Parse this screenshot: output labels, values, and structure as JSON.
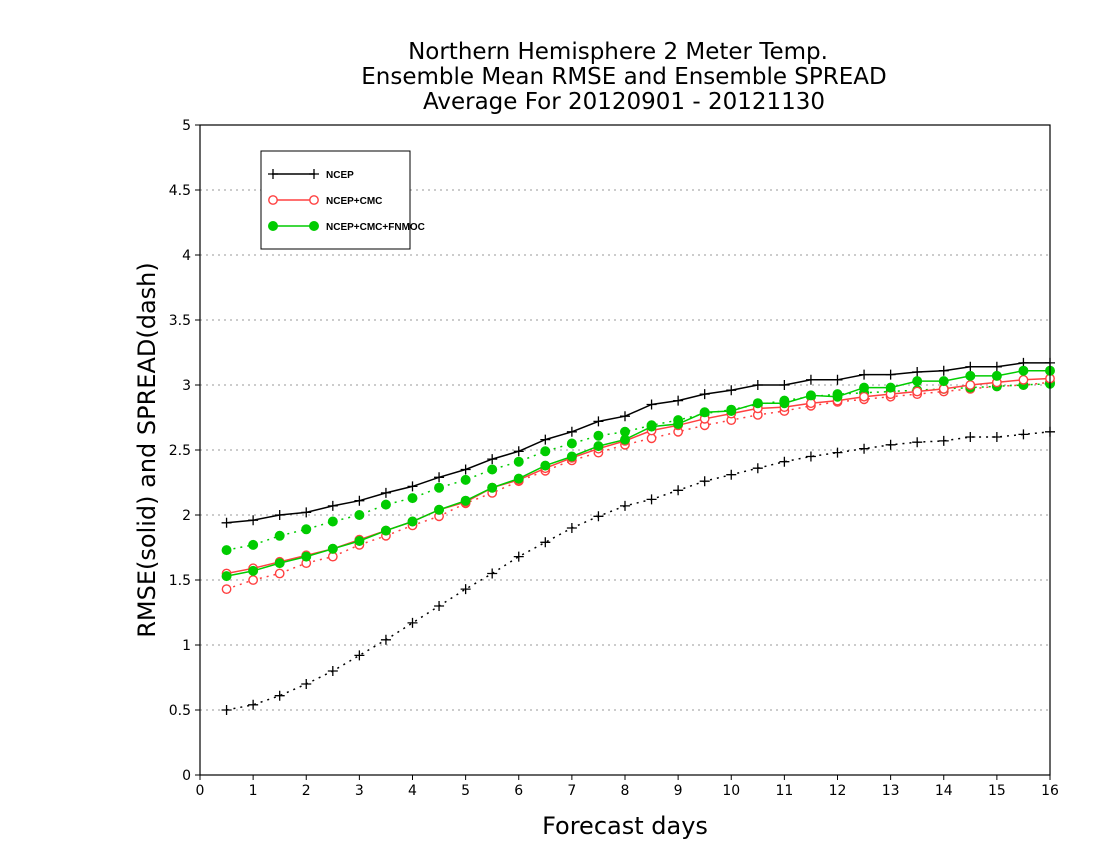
{
  "chart_data": {
    "type": "line",
    "title": [
      "Northern Hemisphere 2 Meter Temp.",
      "Ensemble Mean RMSE and Ensemble SPREAD",
      "Average For 20120901 - 20121130"
    ],
    "xlabel": "Forecast days",
    "ylabel": "RMSE(solid) and SPREAD(dash)",
    "xlim": [
      0,
      16
    ],
    "ylim": [
      0,
      5
    ],
    "xticks": [
      0,
      1,
      2,
      3,
      4,
      5,
      6,
      7,
      8,
      9,
      10,
      11,
      12,
      13,
      14,
      15,
      16
    ],
    "yticks": [
      0,
      0.5,
      1,
      1.5,
      2,
      2.5,
      3,
      3.5,
      4,
      4.5,
      5
    ],
    "x": [
      0.5,
      1,
      1.5,
      2,
      2.5,
      3,
      3.5,
      4,
      4.5,
      5,
      5.5,
      6,
      6.5,
      7,
      7.5,
      8,
      8.5,
      9,
      9.5,
      10,
      10.5,
      11,
      11.5,
      12,
      12.5,
      13,
      13.5,
      14,
      14.5,
      15,
      15.5,
      16
    ],
    "grid": "horizontal dotted",
    "legend_position": "top-left",
    "series": [
      {
        "name": "NCEP",
        "metric": "RMSE",
        "style": "solid",
        "marker": "plus",
        "color": "#000000",
        "values": [
          1.94,
          1.96,
          2.0,
          2.02,
          2.07,
          2.11,
          2.17,
          2.22,
          2.29,
          2.35,
          2.43,
          2.49,
          2.58,
          2.64,
          2.72,
          2.76,
          2.85,
          2.88,
          2.93,
          2.96,
          3.0,
          3.0,
          3.04,
          3.04,
          3.08,
          3.08,
          3.1,
          3.11,
          3.14,
          3.14,
          3.17,
          3.17
        ]
      },
      {
        "name": "NCEP",
        "metric": "SPREAD",
        "style": "dash",
        "marker": "plus",
        "color": "#000000",
        "values": [
          0.5,
          0.54,
          0.61,
          0.7,
          0.8,
          0.92,
          1.04,
          1.17,
          1.3,
          1.43,
          1.55,
          1.68,
          1.79,
          1.9,
          1.99,
          2.07,
          2.12,
          2.19,
          2.26,
          2.31,
          2.36,
          2.41,
          2.45,
          2.48,
          2.51,
          2.54,
          2.56,
          2.57,
          2.6,
          2.6,
          2.62,
          2.64
        ]
      },
      {
        "name": "NCEP+CMC",
        "metric": "RMSE",
        "style": "solid",
        "marker": "open-circle",
        "color": "#ff4040",
        "values": [
          1.55,
          1.59,
          1.64,
          1.69,
          1.74,
          1.81,
          1.88,
          1.95,
          2.04,
          2.1,
          2.21,
          2.27,
          2.36,
          2.44,
          2.51,
          2.57,
          2.65,
          2.69,
          2.74,
          2.78,
          2.82,
          2.83,
          2.86,
          2.88,
          2.91,
          2.93,
          2.95,
          2.97,
          3.0,
          3.02,
          3.04,
          3.05
        ]
      },
      {
        "name": "NCEP+CMC",
        "metric": "SPREAD",
        "style": "dash",
        "marker": "open-circle",
        "color": "#ff4040",
        "values": [
          1.43,
          1.5,
          1.55,
          1.63,
          1.68,
          1.77,
          1.84,
          1.92,
          1.99,
          2.09,
          2.17,
          2.26,
          2.34,
          2.42,
          2.48,
          2.54,
          2.59,
          2.64,
          2.69,
          2.73,
          2.77,
          2.8,
          2.84,
          2.87,
          2.89,
          2.91,
          2.93,
          2.95,
          2.97,
          2.99,
          3.0,
          3.02
        ]
      },
      {
        "name": "NCEP+CMC+FNMOC",
        "metric": "RMSE",
        "style": "solid",
        "marker": "filled-circle",
        "color": "#00cc00",
        "values": [
          1.53,
          1.57,
          1.63,
          1.68,
          1.74,
          1.8,
          1.88,
          1.95,
          2.04,
          2.11,
          2.21,
          2.28,
          2.38,
          2.45,
          2.53,
          2.58,
          2.68,
          2.7,
          2.79,
          2.8,
          2.86,
          2.86,
          2.92,
          2.91,
          2.98,
          2.98,
          3.03,
          3.03,
          3.07,
          3.07,
          3.11,
          3.11
        ]
      },
      {
        "name": "NCEP+CMC+FNMOC",
        "metric": "SPREAD",
        "style": "dash",
        "marker": "filled-circle",
        "color": "#00cc00",
        "values": [
          1.73,
          1.77,
          1.84,
          1.89,
          1.95,
          2.0,
          2.08,
          2.13,
          2.21,
          2.27,
          2.35,
          2.41,
          2.49,
          2.55,
          2.61,
          2.64,
          2.69,
          2.73,
          2.78,
          2.81,
          2.85,
          2.88,
          2.91,
          2.93,
          2.94,
          2.95,
          2.96,
          2.97,
          2.98,
          2.99,
          3.0,
          3.01
        ]
      }
    ],
    "legend": [
      {
        "label": "NCEP",
        "color": "#000000",
        "marker": "plus"
      },
      {
        "label": "NCEP+CMC",
        "color": "#ff4040",
        "marker": "open-circle"
      },
      {
        "label": "NCEP+CMC+FNMOC",
        "color": "#00cc00",
        "marker": "filled-circle"
      }
    ]
  }
}
